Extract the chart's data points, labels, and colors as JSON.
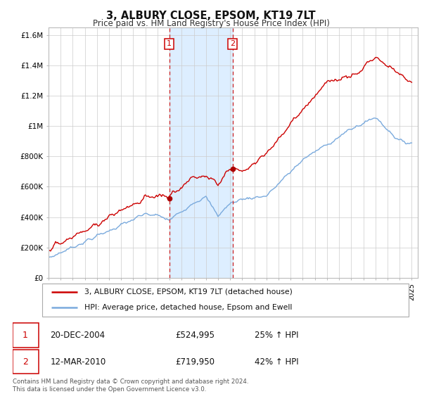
{
  "title": "3, ALBURY CLOSE, EPSOM, KT19 7LT",
  "subtitle": "Price paid vs. HM Land Registry's House Price Index (HPI)",
  "ylabel_ticks": [
    "£0",
    "£200K",
    "£400K",
    "£600K",
    "£800K",
    "£1M",
    "£1.2M",
    "£1.4M",
    "£1.6M"
  ],
  "ytick_values": [
    0,
    200000,
    400000,
    600000,
    800000,
    1000000,
    1200000,
    1400000,
    1600000
  ],
  "ylim": [
    0,
    1650000
  ],
  "xlim_start": 1995.0,
  "xlim_end": 2025.5,
  "sale1_x": 2004.97,
  "sale1_y": 524995,
  "sale2_x": 2010.21,
  "sale2_y": 719950,
  "line_color_property": "#cc0000",
  "line_color_hpi": "#7aaadd",
  "shade_color": "#ddeeff",
  "legend_entry1": "3, ALBURY CLOSE, EPSOM, KT19 7LT (detached house)",
  "legend_entry2": "HPI: Average price, detached house, Epsom and Ewell",
  "table_row1": [
    "1",
    "20-DEC-2004",
    "£524,995",
    "25% ↑ HPI"
  ],
  "table_row2": [
    "2",
    "12-MAR-2010",
    "£719,950",
    "42% ↑ HPI"
  ],
  "footer": "Contains HM Land Registry data © Crown copyright and database right 2024.\nThis data is licensed under the Open Government Licence v3.0.",
  "bg_color": "#ffffff",
  "grid_color": "#cccccc"
}
